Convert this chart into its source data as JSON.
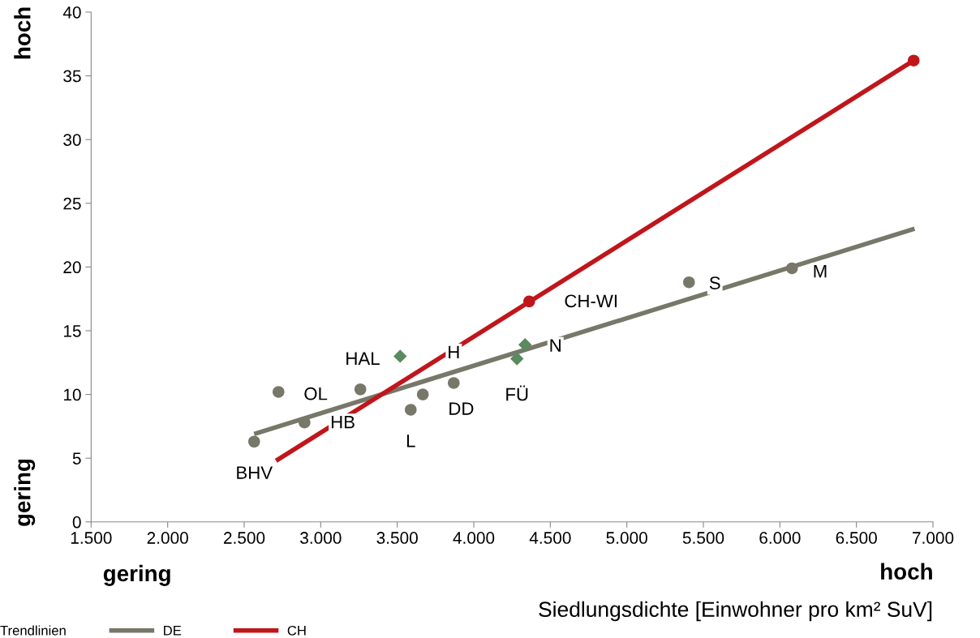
{
  "chart_data": {
    "type": "scatter",
    "xlabel": "Siedlungsdichte [Einwohner pro km² SuV]",
    "legend_title": "Trendlinien",
    "legend": "bottom",
    "grid": false,
    "xlim": [
      1500,
      7000
    ],
    "ylim": [
      0,
      40
    ],
    "xticks": [
      {
        "value": 1500,
        "label": "1.500"
      },
      {
        "value": 2000,
        "label": "2.000"
      },
      {
        "value": 2500,
        "label": "2.500"
      },
      {
        "value": 3000,
        "label": "3.000"
      },
      {
        "value": 3500,
        "label": "3.500"
      },
      {
        "value": 4000,
        "label": "4.000"
      },
      {
        "value": 4500,
        "label": "4.500"
      },
      {
        "value": 5000,
        "label": "5.000"
      },
      {
        "value": 5500,
        "label": "5.500"
      },
      {
        "value": 6000,
        "label": "6.000"
      },
      {
        "value": 6500,
        "label": "6.500"
      },
      {
        "value": 7000,
        "label": "7.000"
      }
    ],
    "yticks": [
      0,
      5,
      10,
      15,
      20,
      25,
      30,
      35,
      40
    ],
    "series": [
      {
        "type": "line",
        "name": "DE",
        "color": "#77776a",
        "marker": "none",
        "x": [
          2565,
          6880
        ],
        "values": [
          6.9,
          23.0
        ]
      },
      {
        "type": "line",
        "name": "CH",
        "color": "#c0161b",
        "marker": "none",
        "x": [
          2708,
          6874
        ],
        "values": [
          4.8,
          36.2
        ]
      },
      {
        "color": "#77776a",
        "marker": "circle",
        "x": [
          2565,
          2724,
          2894,
          3259,
          3588,
          3667,
          3869,
          5406,
          6079
        ],
        "values": [
          6.3,
          10.2,
          7.8,
          10.4,
          8.8,
          10.0,
          10.9,
          18.8,
          19.9
        ]
      },
      {
        "type": "scatter",
        "color": "#5a8a5e",
        "marker": "diamond",
        "x": [
          3519,
          4335,
          4282
        ],
        "values": [
          13.0,
          13.9,
          12.8
        ]
      },
      {
        "type": "scatter",
        "color": "#c0161b",
        "marker": "circle",
        "x": [
          4362,
          6874
        ],
        "values": [
          17.3,
          36.2
        ]
      }
    ],
    "annotations": [
      {
        "text": "BHV",
        "x": 2565,
        "y": 6.3
      },
      {
        "text": "OL",
        "x": 2724,
        "y": 10.2
      },
      {
        "text": "HB",
        "x": 2894,
        "y": 7.8
      },
      {
        "text": "HAL",
        "x": 3259,
        "y": 10.4
      },
      {
        "text": "L",
        "x": 3588,
        "y": 8.8
      },
      {
        "text": "DD",
        "x": 3667,
        "y": 10.0
      },
      {
        "text": "H",
        "x": 3869,
        "y": 10.9
      },
      {
        "text": "FÜ",
        "x": 4282,
        "y": 12.8
      },
      {
        "text": "N",
        "x": 4335,
        "y": 13.9
      },
      {
        "text": "CH-WI",
        "x": 4362,
        "y": 17.3
      },
      {
        "text": "S",
        "x": 5406,
        "y": 18.8
      },
      {
        "text": "M",
        "x": 6079,
        "y": 19.9
      },
      "hoch",
      "gering",
      "gering",
      "hoch"
    ]
  }
}
